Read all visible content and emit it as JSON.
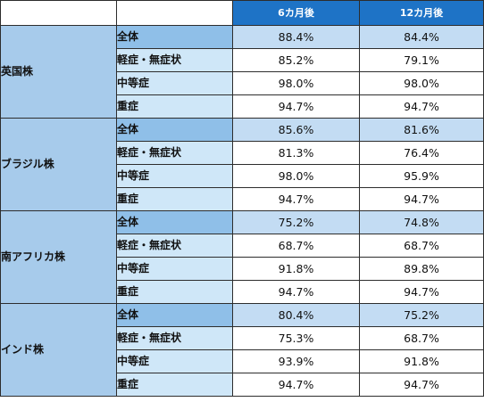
{
  "header": {
    "col1": "",
    "col2": "",
    "col3": "6カ月後",
    "col4": "12カ月後"
  },
  "groups": [
    {
      "strain": "英国株",
      "rows": [
        {
          "category": "全体",
          "m6": "88.4%",
          "m12": "84.4%"
        },
        {
          "category": "軽症・無症状",
          "m6": "85.2%",
          "m12": "79.1%"
        },
        {
          "category": "中等症",
          "m6": "98.0%",
          "m12": "98.0%"
        },
        {
          "category": "重症",
          "m6": "94.7%",
          "m12": "94.7%"
        }
      ]
    },
    {
      "strain": "ブラジル株",
      "rows": [
        {
          "category": "全体",
          "m6": "85.6%",
          "m12": "81.6%"
        },
        {
          "category": "軽症・無症状",
          "m6": "81.3%",
          "m12": "76.4%"
        },
        {
          "category": "中等症",
          "m6": "98.0%",
          "m12": "95.9%"
        },
        {
          "category": "重症",
          "m6": "94.7%",
          "m12": "94.7%"
        }
      ]
    },
    {
      "strain": "南アフリカ株",
      "rows": [
        {
          "category": "全体",
          "m6": "75.2%",
          "m12": "74.8%"
        },
        {
          "category": "軽症・無症状",
          "m6": "68.7%",
          "m12": "68.7%"
        },
        {
          "category": "中等症",
          "m6": "91.8%",
          "m12": "89.8%"
        },
        {
          "category": "重症",
          "m6": "94.7%",
          "m12": "94.7%"
        }
      ]
    },
    {
      "strain": "インド株",
      "rows": [
        {
          "category": "全体",
          "m6": "80.4%",
          "m12": "75.2%"
        },
        {
          "category": "軽症・無症状",
          "m6": "75.3%",
          "m12": "68.7%"
        },
        {
          "category": "中等症",
          "m6": "93.9%",
          "m12": "91.8%"
        },
        {
          "category": "重症",
          "m6": "94.7%",
          "m12": "94.7%"
        }
      ]
    }
  ]
}
